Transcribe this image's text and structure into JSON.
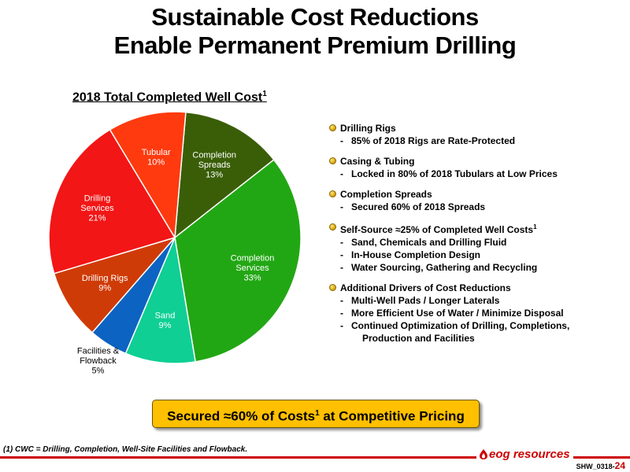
{
  "title": {
    "line1": "Sustainable Cost Reductions",
    "line2": "Enable Permanent Premium Drilling"
  },
  "chart_title": {
    "text": "2018 Total Completed Well Cost",
    "sup": "1"
  },
  "chart_data": {
    "type": "pie",
    "title": "2018 Total Completed Well Cost",
    "start_angle_deg": -85,
    "direction": "clockwise",
    "slices": [
      {
        "label": [
          "Completion",
          "Spreads"
        ],
        "value": 13,
        "display": "13%",
        "color": "#3a5e07",
        "text_color": "#ffffff"
      },
      {
        "label": [
          "Completion",
          "Services"
        ],
        "value": 33,
        "display": "33%",
        "color": "#22a714",
        "text_color": "#ffffff"
      },
      {
        "label": [
          "Sand"
        ],
        "value": 9,
        "display": "9%",
        "color": "#0fcf94",
        "text_color": "#ffffff"
      },
      {
        "label": [
          "Facilities &",
          "Flowback"
        ],
        "value": 5,
        "display": "5%",
        "color": "#0d63c2",
        "text_color": "#000000",
        "outside": true
      },
      {
        "label": [
          "Drilling Rigs"
        ],
        "value": 9,
        "display": "9%",
        "color": "#cf3b07",
        "text_color": "#ffffff"
      },
      {
        "label": [
          "Drilling",
          "Services"
        ],
        "value": 21,
        "display": "21%",
        "color": "#f21616",
        "text_color": "#ffffff"
      },
      {
        "label": [
          "Tubular"
        ],
        "value": 10,
        "display": "10%",
        "color": "#ff3a0f",
        "text_color": "#ffffff"
      }
    ]
  },
  "bullets": [
    {
      "head": "Drilling Rigs",
      "items": [
        "85% of 2018 Rigs are Rate-Protected"
      ]
    },
    {
      "head": "Casing & Tubing",
      "items": [
        "Locked in 80% of 2018 Tubulars at Low Prices"
      ]
    },
    {
      "head": "Completion Spreads",
      "items": [
        "Secured 60% of 2018 Spreads"
      ]
    },
    {
      "head": "Self-Source ≈25% of Completed Well Costs",
      "head_sup": "1",
      "items": [
        "Sand, Chemicals and Drilling Fluid",
        "In-House Completion Design",
        "Water Sourcing, Gathering and Recycling"
      ]
    },
    {
      "head": "Additional Drivers of Cost Reductions",
      "items": [
        "Multi-Well Pads / Longer Laterals",
        "More Efficient Use of Water / Minimize Disposal",
        "Continued Optimization of  Drilling, Completions,"
      ],
      "continuation": "Production and Facilities"
    }
  ],
  "callout": {
    "pre": "Secured ≈60% of Costs",
    "sup": "1",
    "post": " at Competitive Pricing"
  },
  "footnote": "(1) CWC = Drilling, Completion, Well-Site Facilities and Flowback.",
  "logo_text": "eog resources",
  "slide_id": {
    "prefix": "SHW_0318-",
    "number": "24"
  },
  "colors": {
    "bullet_dot": "#d39b00",
    "callout_bg": "#ffc000",
    "brand_red": "#cc0000"
  }
}
